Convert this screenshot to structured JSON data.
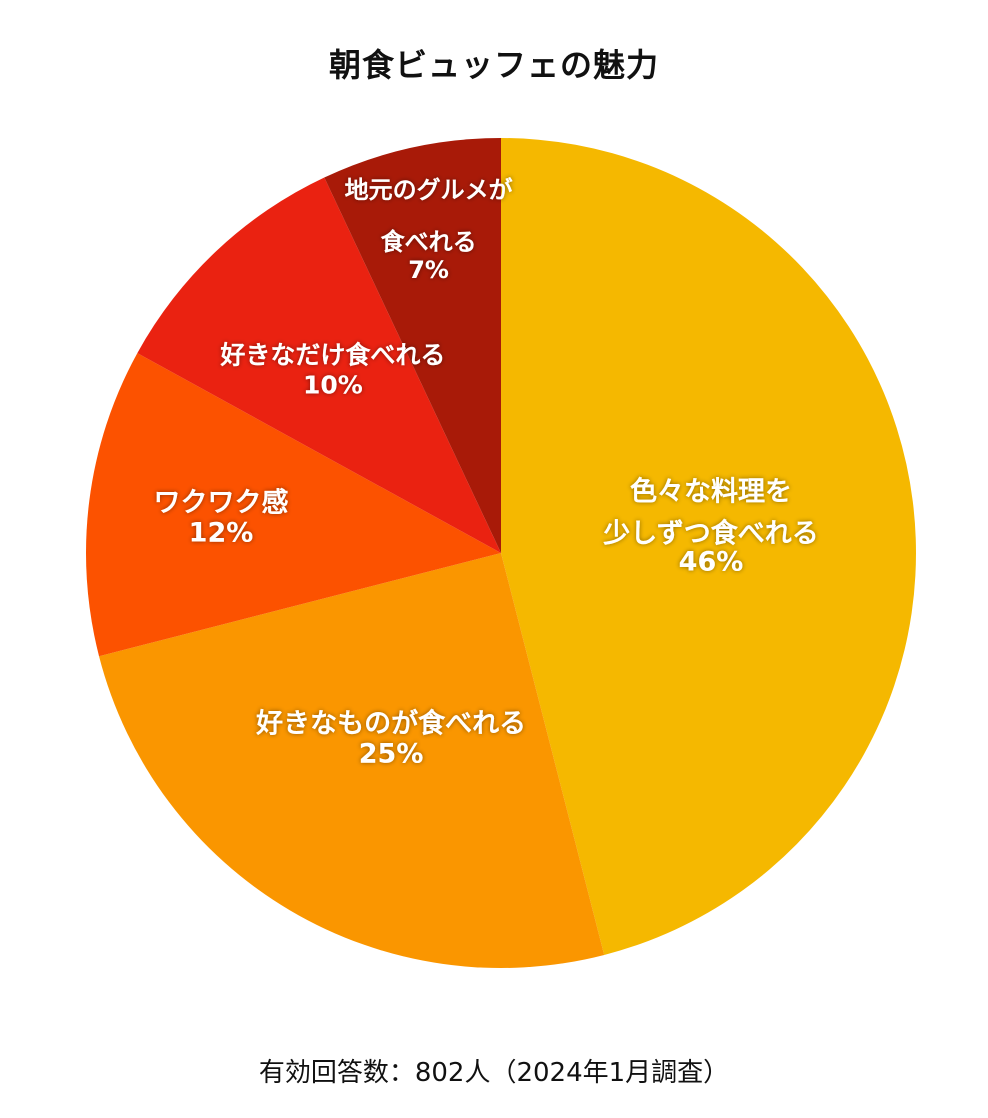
{
  "chart_data": {
    "type": "pie",
    "title": "朝食ビュッフェの魅力",
    "slices": [
      {
        "label": [
          "色々な料理を",
          "少しずつ食べれる"
        ],
        "value": 46,
        "value_label": "46%",
        "color": "#F5B800"
      },
      {
        "label": [
          "好きなものが食べれる"
        ],
        "value": 25,
        "value_label": "25%",
        "color": "#FA9600"
      },
      {
        "label": [
          "ワクワク感"
        ],
        "value": 12,
        "value_label": "12%",
        "color": "#FC5200"
      },
      {
        "label": [
          "好きなだけ食べれる"
        ],
        "value": 10,
        "value_label": "10%",
        "color": "#EA2211"
      },
      {
        "label": [
          "地元のグルメが",
          "食べれる"
        ],
        "value": 7,
        "value_label": "7%",
        "color": "#A81A08"
      }
    ],
    "start": "12 o'clock",
    "direction": "clockwise",
    "legend": "none",
    "note": "有効回答数：802人（2024年1月調査）"
  }
}
